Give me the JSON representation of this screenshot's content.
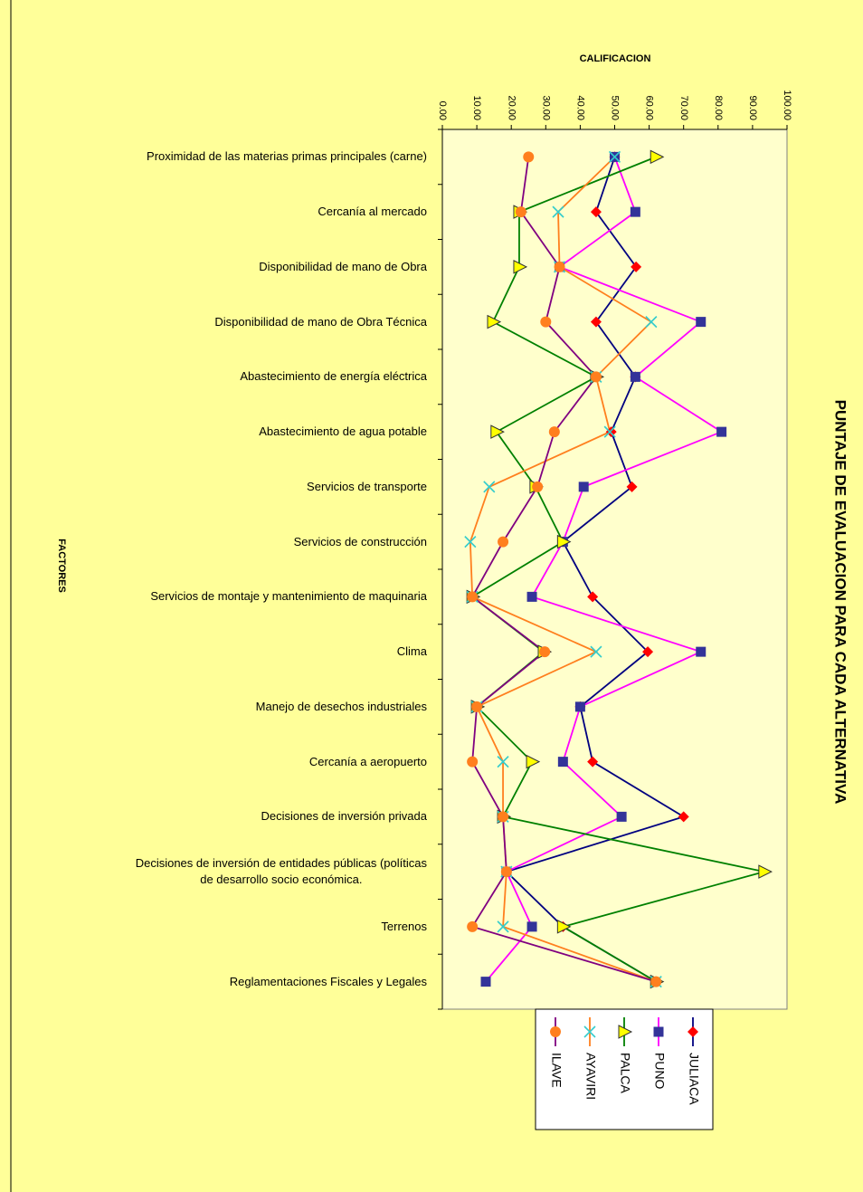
{
  "chart_data": {
    "type": "line",
    "title": "PUNTAJE DE EVALUACION PARA CADA ALTERNATIVA",
    "value_axis_label": "CALIFICACION",
    "category_axis_label": "FACTORES",
    "categories": [
      "Proximidad de las materias primas principales (carne)",
      "Cercanía al mercado",
      "Disponibilidad de mano de Obra",
      "Disponibilidad de mano de Obra Técnica",
      "Abastecimiento de energía eléctrica",
      "Abastecimiento de agua potable",
      "Servicios de transporte",
      "Servicios de construcción",
      "Servicios de montaje y mantenimiento de maquinaria",
      "Clima",
      "Manejo de desechos industriales",
      "Cercanía a aeropuerto",
      "Decisiones de inversión privada",
      "Decisiones de inversión de entidades públicas (políticas\nde desarrollo socio económica.",
      "Terrenos",
      "Reglamentaciones Fiscales y Legales"
    ],
    "ylim": [
      0,
      100
    ],
    "yticks": [
      {
        "value": 0,
        "label": "0.00"
      },
      {
        "value": 10,
        "label": "10.00"
      },
      {
        "value": 20,
        "label": "20.00"
      },
      {
        "value": 30,
        "label": "30.00"
      },
      {
        "value": 40,
        "label": "40.00"
      },
      {
        "value": 50,
        "label": "50.00"
      },
      {
        "value": 60,
        "label": "60.00"
      },
      {
        "value": 70,
        "label": "70.00"
      },
      {
        "value": 80,
        "label": "80.00"
      },
      {
        "value": 90,
        "label": "90.00"
      },
      {
        "value": 100,
        "label": "100.00"
      }
    ],
    "series": [
      {
        "name": "JULIACA",
        "color": "#000080",
        "marker": "diamond",
        "marker_color": "#ff0000",
        "values": [
          50,
          44.6,
          56.2,
          44.6,
          56,
          49,
          55,
          35,
          43.6,
          59.6,
          40,
          43.6,
          70,
          18.6,
          35,
          62
        ]
      },
      {
        "name": "PUNO",
        "color": "#ff00ff",
        "marker": "square",
        "marker_color": "#333399",
        "values": [
          50,
          56,
          34,
          75,
          56,
          81,
          41,
          35,
          26,
          75,
          40,
          35,
          52,
          18.6,
          26,
          12.6
        ]
      },
      {
        "name": "PALCA",
        "color": "#008000",
        "marker": "triangle",
        "marker_color": "#ffff00",
        "values": [
          62,
          22.3,
          22.3,
          14.7,
          44.6,
          15.7,
          27,
          35,
          8.7,
          29.4,
          10,
          26,
          17.6,
          93.4,
          35,
          62
        ]
      },
      {
        "name": "AYAVIRI",
        "color": "#ff7f1e",
        "marker": "x",
        "marker_color": "#33cccc",
        "values": [
          50,
          33.6,
          34,
          60.6,
          44.6,
          48.6,
          13.6,
          8.1,
          8.7,
          44.6,
          10,
          17.6,
          17.6,
          18.6,
          17.6,
          62
        ]
      },
      {
        "name": "ILAVE",
        "color": "#800080",
        "marker": "circle",
        "marker_color": "#ff7f1e",
        "values": [
          25,
          22.8,
          34,
          30,
          44.6,
          32.5,
          27.6,
          17.6,
          8.7,
          29.7,
          10,
          8.7,
          17.6,
          18.6,
          8.7,
          62
        ]
      }
    ]
  }
}
